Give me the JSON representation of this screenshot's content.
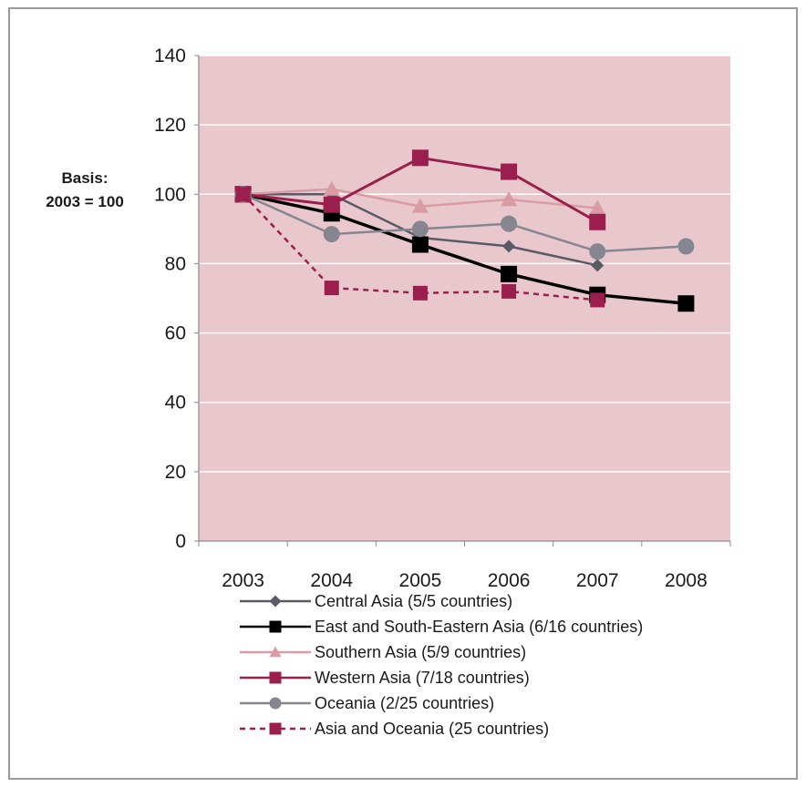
{
  "chart_data": {
    "type": "line",
    "title": "",
    "xlabel": "",
    "ylabel_lines": [
      "Basis:",
      "2003 = 100"
    ],
    "x": [
      "2003",
      "2004",
      "2005",
      "2006",
      "2007",
      "2008"
    ],
    "ylim": [
      0,
      140
    ],
    "yticks": [
      "0",
      "20",
      "40",
      "60",
      "80",
      "100",
      "120",
      "140"
    ],
    "grid": true,
    "plot_background": "#e8c8cd",
    "legend_position": "bottom",
    "series": [
      {
        "name": "Central Asia (5/5 countries)",
        "values": [
          100,
          100,
          87.5,
          85,
          79.5,
          null
        ],
        "color": "#5a5a66",
        "marker": "diamond",
        "dash": false,
        "width": 2.5,
        "msize": 7
      },
      {
        "name": "East and South-Eastern  Asia (6/16 countries)",
        "values": [
          100,
          94.5,
          85.5,
          77,
          71,
          68.5
        ],
        "color": "#000000",
        "marker": "square",
        "dash": false,
        "width": 3.5,
        "msize": 9
      },
      {
        "name": "Southern Asia (5/9 countries)",
        "values": [
          100,
          101.5,
          96.5,
          98.5,
          96,
          null
        ],
        "color": "#d99ca4",
        "marker": "triangle",
        "dash": false,
        "width": 2.5,
        "msize": 9
      },
      {
        "name": "Western Asia (7/18 countries)",
        "values": [
          100,
          97,
          110.5,
          106.5,
          92,
          null
        ],
        "color": "#9b1f4e",
        "marker": "square",
        "dash": false,
        "width": 3,
        "msize": 9
      },
      {
        "name": "Oceania (2/25 countries)",
        "values": [
          100,
          88.5,
          90,
          91.5,
          83.5,
          85
        ],
        "color": "#868691",
        "marker": "circle",
        "dash": false,
        "width": 2.5,
        "msize": 9
      },
      {
        "name": "Asia and Oceania (25 countries)",
        "values": [
          100,
          73,
          71.5,
          72,
          69.5,
          null
        ],
        "color": "#9b1f4e",
        "marker": "square",
        "dash": true,
        "width": 2.5,
        "msize": 8
      }
    ]
  }
}
